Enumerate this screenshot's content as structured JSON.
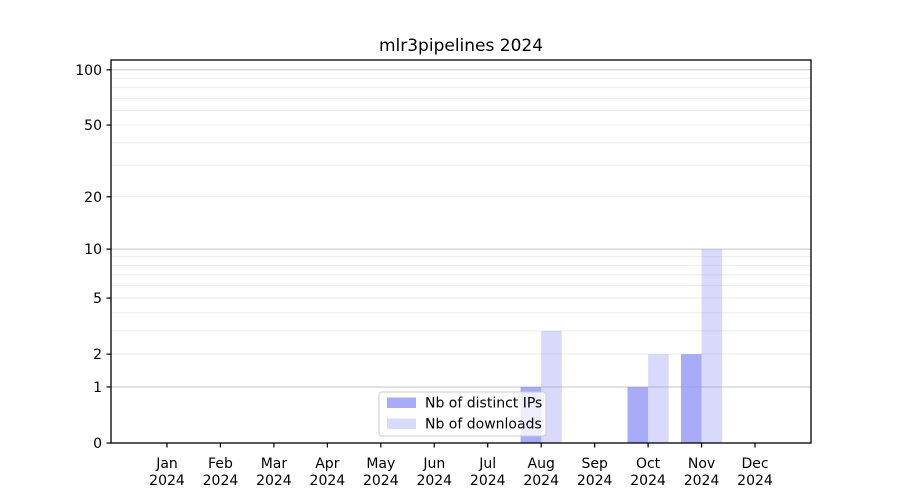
{
  "title": "mlr3pipelines 2024",
  "chart_data": {
    "type": "bar",
    "title": "mlr3pipelines 2024",
    "categories": [
      "Jan",
      "Feb",
      "Mar",
      "Apr",
      "May",
      "Jun",
      "Jul",
      "Aug",
      "Sep",
      "Oct",
      "Nov",
      "Dec"
    ],
    "category_year": "2024",
    "series": [
      {
        "name": "Nb of distinct IPs",
        "values": [
          0,
          0,
          0,
          0,
          0,
          0,
          0,
          1,
          0,
          1,
          2,
          0
        ],
        "color": "#8387f3",
        "opacity": 0.7
      },
      {
        "name": "Nb of downloads",
        "values": [
          0,
          0,
          0,
          0,
          0,
          0,
          0,
          3,
          0,
          2,
          10,
          0
        ],
        "color": "#8387f3",
        "opacity": 0.31
      }
    ],
    "y_ticks": [
      0,
      1,
      2,
      5,
      10,
      20,
      50,
      100
    ],
    "y_major_grid": [
      1,
      10,
      100
    ],
    "y_minor_grid": [
      2,
      3,
      4,
      5,
      6,
      7,
      8,
      9,
      20,
      30,
      40,
      50,
      60,
      70,
      80,
      90
    ],
    "y_scale": "log1p",
    "ylim": [
      0,
      113
    ],
    "xlabel": "",
    "ylabel": "",
    "grid": true,
    "legend_position": "inside-bottom-center",
    "colors": {
      "grid_major": "#c6c6c6",
      "grid_minor": "#ececec",
      "axis": "#000000",
      "text": "#000000",
      "legend_border": "#cccccc",
      "legend_bg": "#ffffff",
      "background": "#ffffff"
    }
  }
}
